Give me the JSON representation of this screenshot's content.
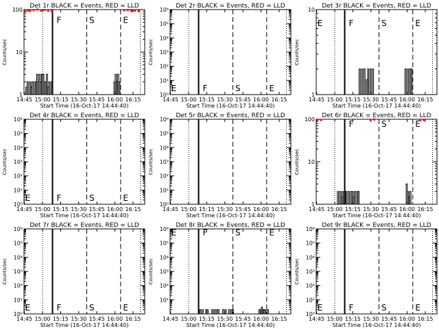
{
  "figure": {
    "xlabel": "Start Time (16-Oct-17 14:44:40)",
    "ylabel": "Counts/sec",
    "xticks": [
      "14:45",
      "15:00",
      "15:15",
      "15:30",
      "15:45",
      "16:00",
      "16:15"
    ],
    "xtick_minutes": [
      0.33,
      15.33,
      30.33,
      45.33,
      60.33,
      75.33,
      90.33
    ],
    "xlim_minutes": [
      0,
      100
    ],
    "colors": {
      "events": "#000000",
      "lld": "#ff0000",
      "axes": "#000000",
      "background": "#ffffff"
    }
  },
  "chart_data": [
    {
      "id": "1r",
      "type": "line",
      "title": "Det 1r BLACK = Events, RED = LLD",
      "yscale": "log",
      "ylim": [
        1,
        100
      ],
      "yticks": [
        {
          "v": 1,
          "label": "1"
        },
        {
          "v": 10,
          "label": "10"
        },
        {
          "v": 100,
          "label": "100"
        }
      ],
      "markers": {
        "dotted": [
          15.4,
          96.3
        ],
        "solid": [
          23.6
        ],
        "dashed": [
          52.0,
          80.0
        ],
        "letters": [
          {
            "t": "F",
            "x": 27,
            "y": 58
          },
          {
            "t": "S",
            "x": 54,
            "y": 58
          },
          {
            "t": "E",
            "x": 82,
            "y": 58
          }
        ]
      },
      "series": [
        {
          "name": "Events",
          "color": "#000000",
          "x": [
            1,
            2,
            3,
            4,
            5,
            6,
            7,
            8,
            9,
            10,
            11,
            12,
            13,
            14,
            15,
            16,
            17,
            18,
            19,
            20,
            21,
            22,
            23,
            24,
            75,
            76,
            77,
            78,
            79
          ],
          "y": [
            1,
            1.5,
            2,
            1,
            2,
            1.5,
            2,
            1,
            2,
            2,
            3,
            2,
            3,
            2,
            3,
            3,
            2,
            2,
            3,
            1.5,
            2,
            1,
            2,
            1,
            2,
            3,
            2,
            3,
            2
          ]
        },
        {
          "name": "LLD",
          "color": "#ff0000",
          "x": [
            1,
            3,
            5,
            8,
            11,
            14,
            17,
            20,
            23,
            83,
            86,
            89,
            92,
            95
          ],
          "y": [
            90,
            95,
            93,
            97,
            100,
            96,
            98,
            94,
            92,
            96,
            98,
            93,
            95,
            92
          ]
        }
      ]
    },
    {
      "id": "2r",
      "type": "line",
      "title": "Det 2r BLACK = Events, RED = LLD",
      "yscale": "log",
      "ylim": [
        1,
        1000000
      ],
      "yticks": [
        {
          "v": 1,
          "label": "10⁰"
        },
        {
          "v": 10,
          "label": "10¹"
        },
        {
          "v": 100,
          "label": "10²"
        },
        {
          "v": 1000,
          "label": "10³"
        },
        {
          "v": 10000,
          "label": "10⁴"
        },
        {
          "v": 100000,
          "label": "10⁵"
        },
        {
          "v": 1000000,
          "label": "10⁶"
        }
      ],
      "markers": {
        "dotted": [
          15.4,
          96.3
        ],
        "solid": [
          23.6
        ],
        "dashed": [
          52.0,
          80.0
        ],
        "letters": [
          {
            "t": "F",
            "x": 27,
            "y": 3
          },
          {
            "t": "S",
            "x": 54,
            "y": 3
          },
          {
            "t": "E",
            "x": 82,
            "y": 3
          },
          {
            "t": "E",
            "x": 1,
            "y": 3
          }
        ]
      },
      "series": []
    },
    {
      "id": "3r",
      "type": "line",
      "title": "Det 3r BLACK = Events, RED = LLD",
      "yscale": "log",
      "ylim": [
        1,
        10
      ],
      "yticks": [
        {
          "v": 1,
          "label": "1"
        },
        {
          "v": 10,
          "label": "10"
        }
      ],
      "markers": {
        "dotted": [
          15.4,
          96.3
        ],
        "solid": [
          23.6
        ],
        "dashed": [
          52.0,
          80.0
        ],
        "letters": [
          {
            "t": "E",
            "x": 1,
            "y": 7
          },
          {
            "t": "F",
            "x": 27,
            "y": 7
          },
          {
            "t": "S",
            "x": 54,
            "y": 7
          },
          {
            "t": "E",
            "x": 82,
            "y": 7
          }
        ]
      },
      "series": [
        {
          "name": "Events",
          "color": "#000000",
          "x": [
            35,
            36,
            37,
            38,
            39,
            40,
            41,
            42,
            43,
            44,
            45,
            46,
            47,
            74,
            75,
            76,
            77,
            78,
            79,
            80
          ],
          "y": [
            1,
            2,
            1,
            2,
            1,
            2,
            1,
            1.5,
            2,
            1,
            2,
            1,
            2,
            2,
            1,
            2,
            1,
            2,
            2,
            1
          ]
        }
      ]
    },
    {
      "id": "4r",
      "type": "line",
      "title": "Det 4r BLACK = Events, RED = LLD",
      "yscale": "log",
      "ylim": [
        1,
        1000000
      ],
      "yticks": [
        {
          "v": 1,
          "label": "10⁰"
        },
        {
          "v": 10,
          "label": "10¹"
        },
        {
          "v": 100,
          "label": "10²"
        },
        {
          "v": 1000,
          "label": "10³"
        },
        {
          "v": 10000,
          "label": "10⁴"
        },
        {
          "v": 100000,
          "label": "10⁵"
        },
        {
          "v": 1000000,
          "label": "10⁶"
        }
      ],
      "markers": {
        "dotted": [
          15.4,
          96.3
        ],
        "solid": [
          23.6
        ],
        "dashed": [
          52.0,
          80.0
        ],
        "letters": [
          {
            "t": "E",
            "x": 1,
            "y": 3
          },
          {
            "t": "F",
            "x": 27,
            "y": 3
          },
          {
            "t": "S",
            "x": 54,
            "y": 3
          },
          {
            "t": "E",
            "x": 82,
            "y": 3
          }
        ]
      },
      "series": []
    },
    {
      "id": "5r",
      "type": "line",
      "title": "Det 5r BLACK = Events, RED = LLD",
      "yscale": "log",
      "ylim": [
        1,
        1000000
      ],
      "yticks": [
        {
          "v": 1,
          "label": "10⁰"
        },
        {
          "v": 10,
          "label": "10¹"
        },
        {
          "v": 100,
          "label": "10²"
        },
        {
          "v": 1000,
          "label": "10³"
        },
        {
          "v": 10000,
          "label": "10⁴"
        },
        {
          "v": 100000,
          "label": "10⁵"
        },
        {
          "v": 1000000,
          "label": "10⁶"
        }
      ],
      "markers": {
        "dotted": [
          15.4,
          96.3
        ],
        "solid": [
          23.6
        ],
        "dashed": [
          52.0,
          80.0
        ],
        "letters": []
      },
      "series": []
    },
    {
      "id": "6r",
      "type": "line",
      "title": "Det 6r BLACK = Events, RED = LLD",
      "yscale": "log",
      "ylim": [
        1,
        100
      ],
      "yticks": [
        {
          "v": 1,
          "label": "1"
        },
        {
          "v": 10,
          "label": "10"
        },
        {
          "v": 100,
          "label": "100"
        }
      ],
      "markers": {
        "dotted": [
          15.4,
          96.3
        ],
        "solid": [
          23.6
        ],
        "dashed": [
          52.0,
          80.0
        ],
        "letters": [
          {
            "t": "F",
            "x": 27,
            "y": 80
          },
          {
            "t": "S",
            "x": 54,
            "y": 80
          },
          {
            "t": "E",
            "x": 82,
            "y": 80
          }
        ]
      },
      "series": [
        {
          "name": "Events",
          "color": "#000000",
          "x": [
            17,
            18,
            19,
            20,
            21,
            22,
            23,
            24,
            25,
            26,
            27,
            28,
            29,
            30,
            31,
            32,
            33,
            34,
            35,
            36,
            75,
            76,
            77,
            78,
            79
          ],
          "y": [
            1,
            2,
            1,
            2,
            1.5,
            2,
            1,
            2,
            2,
            1,
            2,
            1,
            2,
            2,
            1.5,
            2,
            1,
            2,
            2,
            1,
            3,
            2,
            1.5,
            2,
            1
          ]
        },
        {
          "name": "LLD",
          "color": "#ff0000",
          "x": [
            1,
            4,
            45,
            48,
            86,
            89
          ],
          "y": [
            98,
            96,
            97,
            99,
            95,
            97
          ]
        }
      ]
    },
    {
      "id": "7r",
      "type": "line",
      "title": "Det 7r BLACK = Events, RED = LLD",
      "yscale": "log",
      "ylim": [
        1,
        1000000
      ],
      "yticks": [
        {
          "v": 1,
          "label": "10⁰"
        },
        {
          "v": 10,
          "label": "10¹"
        },
        {
          "v": 100,
          "label": "10²"
        },
        {
          "v": 1000,
          "label": "10³"
        },
        {
          "v": 10000,
          "label": "10⁴"
        },
        {
          "v": 100000,
          "label": "10⁵"
        },
        {
          "v": 1000000,
          "label": "10⁶"
        }
      ],
      "markers": {
        "dotted": [
          15.4,
          96.3
        ],
        "solid": [
          23.6
        ],
        "dashed": [
          52.0,
          80.0
        ],
        "letters": [
          {
            "t": "E",
            "x": 1,
            "y": 3
          },
          {
            "t": "F",
            "x": 27,
            "y": 3
          },
          {
            "t": "S",
            "x": 54,
            "y": 3
          },
          {
            "t": "E",
            "x": 82,
            "y": 3
          }
        ]
      },
      "series": []
    },
    {
      "id": "8r",
      "type": "line",
      "title": "Det 8r BLACK = Events, RED = LLD",
      "yscale": "log",
      "ylim": [
        1,
        1000000
      ],
      "yticks": [
        {
          "v": 10,
          "label": "10¹"
        },
        {
          "v": 100,
          "label": "10²"
        },
        {
          "v": 1000,
          "label": "10³"
        },
        {
          "v": 10000,
          "label": "10⁴"
        },
        {
          "v": 100000,
          "label": "10⁵"
        },
        {
          "v": 1000000,
          "label": "10⁶"
        }
      ],
      "markers": {
        "dotted": [
          15.4,
          96.3
        ],
        "solid": [
          23.6
        ],
        "dashed": [
          52.0,
          80.0
        ],
        "letters": [
          {
            "t": "E",
            "x": 1,
            "y": 600000
          },
          {
            "t": "F",
            "x": 27,
            "y": 600000
          },
          {
            "t": "S",
            "x": 54,
            "y": 600000
          },
          {
            "t": "E",
            "x": 82,
            "y": 600000
          }
        ]
      },
      "series": [
        {
          "name": "Events",
          "color": "#000000",
          "x": [
            25,
            26,
            27,
            28,
            29,
            30,
            31,
            32,
            33,
            34,
            35,
            36,
            37,
            38,
            39,
            40,
            41,
            42,
            43,
            44,
            45,
            46,
            47,
            48,
            49,
            50,
            51,
            52,
            53,
            54,
            74,
            75,
            76,
            77,
            78,
            79,
            80,
            81,
            82
          ],
          "y": [
            2,
            1,
            2,
            1,
            1,
            2,
            2,
            1,
            1,
            1,
            2,
            1,
            2,
            1,
            2,
            2,
            1,
            1,
            1,
            2,
            1,
            2,
            1,
            1,
            2,
            1,
            2,
            2,
            1,
            1,
            2,
            2,
            3,
            2,
            2,
            2,
            1,
            2,
            1
          ]
        }
      ]
    },
    {
      "id": "9r",
      "type": "line",
      "title": "Det 9r BLACK = Events, RED = LLD",
      "yscale": "log",
      "ylim": [
        1,
        1000000
      ],
      "yticks": [
        {
          "v": 1,
          "label": "10⁰"
        },
        {
          "v": 10,
          "label": "10¹"
        },
        {
          "v": 100,
          "label": "10²"
        },
        {
          "v": 1000,
          "label": "10³"
        },
        {
          "v": 10000,
          "label": "10⁴"
        },
        {
          "v": 100000,
          "label": "10⁵"
        },
        {
          "v": 1000000,
          "label": "10⁶"
        }
      ],
      "markers": {
        "dotted": [
          15.4,
          96.3
        ],
        "solid": [
          23.6
        ],
        "dashed": [
          52.0,
          80.0
        ],
        "letters": [
          {
            "t": "E",
            "x": 1,
            "y": 3
          },
          {
            "t": "F",
            "x": 27,
            "y": 3
          },
          {
            "t": "S",
            "x": 54,
            "y": 3
          },
          {
            "t": "E",
            "x": 82,
            "y": 3
          }
        ]
      },
      "series": []
    }
  ]
}
